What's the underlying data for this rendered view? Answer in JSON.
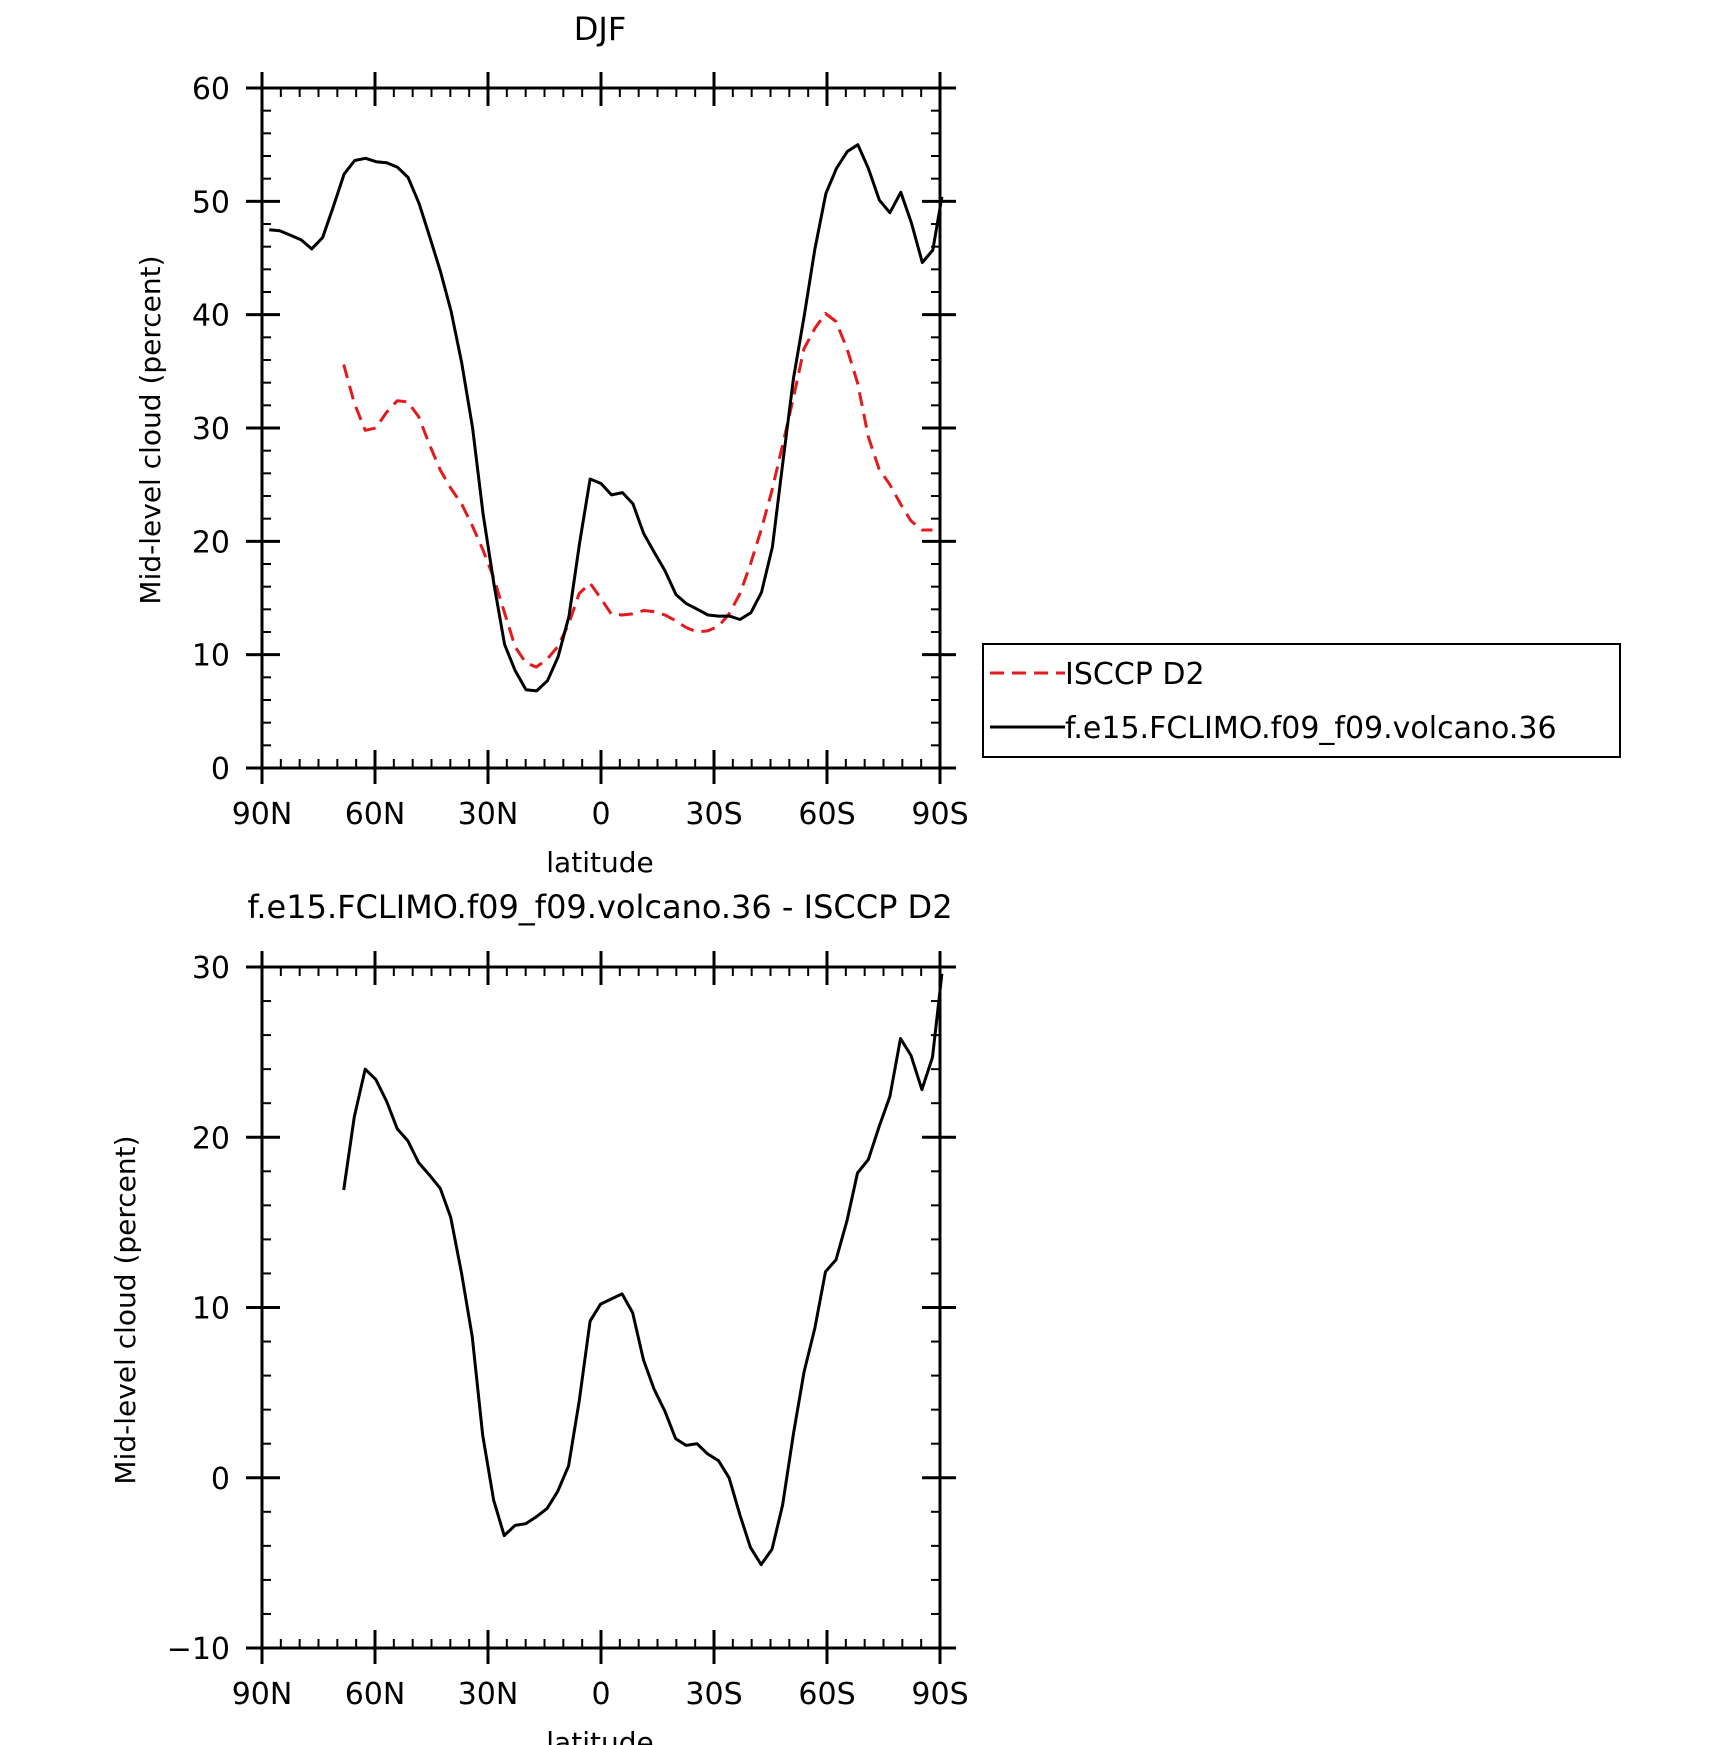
{
  "chart_data": [
    {
      "type": "line",
      "title": "DJF",
      "xlabel": "latitude",
      "ylabel": "Mid-level cloud (percent)",
      "xlim": [
        90,
        -90
      ],
      "ylim": [
        0,
        60
      ],
      "x_ticks": [
        90,
        60,
        30,
        0,
        -30,
        -60,
        -90
      ],
      "x_tick_labels": [
        "90N",
        "60N",
        "30N",
        "0",
        "30S",
        "60S",
        "90S"
      ],
      "y_ticks": [
        0,
        10,
        20,
        30,
        40,
        50,
        60
      ],
      "y_tick_labels": [
        "0",
        "10",
        "20",
        "30",
        "40",
        "50",
        "60"
      ],
      "grid": false,
      "legend_position": "right",
      "series": [
        {
          "name": "ISCCP D2",
          "color": "#e41a1c",
          "dash": true,
          "points": [
            [
              68.3,
              35.6
            ],
            [
              65.5,
              32.2
            ],
            [
              62.6,
              29.8
            ],
            [
              59.8,
              30.0
            ],
            [
              56.9,
              31.4
            ],
            [
              54.1,
              32.4
            ],
            [
              51.3,
              32.3
            ],
            [
              48.4,
              31.0
            ],
            [
              45.6,
              28.6
            ],
            [
              42.7,
              26.3
            ],
            [
              39.9,
              24.7
            ],
            [
              37.0,
              23.3
            ],
            [
              34.2,
              21.4
            ],
            [
              31.4,
              19.3
            ],
            [
              28.5,
              16.8
            ],
            [
              25.7,
              13.8
            ],
            [
              22.8,
              10.7
            ],
            [
              20.0,
              9.3
            ],
            [
              17.2,
              8.9
            ],
            [
              14.3,
              9.6
            ],
            [
              11.5,
              10.7
            ],
            [
              8.6,
              12.7
            ],
            [
              5.8,
              15.4
            ],
            [
              2.9,
              16.3
            ],
            [
              0.1,
              15.0
            ],
            [
              -2.7,
              13.6
            ],
            [
              -5.6,
              13.5
            ],
            [
              -8.4,
              13.6
            ],
            [
              -11.3,
              13.9
            ],
            [
              -14.1,
              13.8
            ],
            [
              -17.0,
              13.5
            ],
            [
              -19.8,
              13.0
            ],
            [
              -22.6,
              12.4
            ],
            [
              -25.5,
              12.0
            ],
            [
              -28.3,
              12.1
            ],
            [
              -31.2,
              12.5
            ],
            [
              -34.0,
              13.6
            ],
            [
              -36.9,
              15.4
            ],
            [
              -39.7,
              18.0
            ],
            [
              -42.5,
              21.0
            ],
            [
              -45.4,
              24.5
            ],
            [
              -48.2,
              28.5
            ],
            [
              -51.1,
              32.7
            ],
            [
              -53.9,
              37.0
            ],
            [
              -56.8,
              38.8
            ],
            [
              -59.6,
              40.1
            ],
            [
              -62.4,
              39.4
            ],
            [
              -65.3,
              37.0
            ],
            [
              -68.1,
              34.0
            ],
            [
              -71.0,
              29.2
            ],
            [
              -73.8,
              26.4
            ],
            [
              -76.7,
              25.0
            ],
            [
              -79.5,
              23.3
            ],
            [
              -82.3,
              21.8
            ],
            [
              -85.2,
              21.0
            ],
            [
              -88.0,
              21.0
            ]
          ]
        },
        {
          "name": "f.e15.FCLIMO.f09_f09.volcano.36",
          "color": "#000000",
          "dash": false,
          "points": [
            [
              88.1,
              47.5
            ],
            [
              85.3,
              47.4
            ],
            [
              82.4,
              47.0
            ],
            [
              79.6,
              46.6
            ],
            [
              76.8,
              45.8
            ],
            [
              73.9,
              46.8
            ],
            [
              71.1,
              49.5
            ],
            [
              68.2,
              52.4
            ],
            [
              65.4,
              53.6
            ],
            [
              62.5,
              53.8
            ],
            [
              59.7,
              53.5
            ],
            [
              56.9,
              53.4
            ],
            [
              54.0,
              53.0
            ],
            [
              51.2,
              52.1
            ],
            [
              48.3,
              49.8
            ],
            [
              45.5,
              46.9
            ],
            [
              42.6,
              43.8
            ],
            [
              39.8,
              40.3
            ],
            [
              37.0,
              35.8
            ],
            [
              34.1,
              30.0
            ],
            [
              31.3,
              22.4
            ],
            [
              28.4,
              16.2
            ],
            [
              25.6,
              10.9
            ],
            [
              22.8,
              8.6
            ],
            [
              19.9,
              6.9
            ],
            [
              17.1,
              6.8
            ],
            [
              14.2,
              7.7
            ],
            [
              11.4,
              9.8
            ],
            [
              8.5,
              13.4
            ],
            [
              5.7,
              19.8
            ],
            [
              2.9,
              25.5
            ],
            [
              0.0,
              25.1
            ],
            [
              -2.8,
              24.1
            ],
            [
              -5.7,
              24.3
            ],
            [
              -8.5,
              23.3
            ],
            [
              -11.3,
              20.7
            ],
            [
              -14.2,
              19.0
            ],
            [
              -17.0,
              17.4
            ],
            [
              -19.9,
              15.3
            ],
            [
              -22.7,
              14.5
            ],
            [
              -25.6,
              14.0
            ],
            [
              -28.4,
              13.5
            ],
            [
              -31.2,
              13.4
            ],
            [
              -34.1,
              13.4
            ],
            [
              -36.9,
              13.1
            ],
            [
              -39.8,
              13.7
            ],
            [
              -42.6,
              15.5
            ],
            [
              -45.5,
              19.5
            ],
            [
              -48.3,
              27.0
            ],
            [
              -51.1,
              34.4
            ],
            [
              -54.0,
              40.0
            ],
            [
              -56.8,
              45.8
            ],
            [
              -59.7,
              50.7
            ],
            [
              -62.5,
              52.9
            ],
            [
              -65.4,
              54.4
            ],
            [
              -68.2,
              55.0
            ],
            [
              -71.0,
              52.9
            ],
            [
              -73.9,
              50.1
            ],
            [
              -76.7,
              49.0
            ],
            [
              -79.6,
              50.8
            ],
            [
              -82.4,
              48.1
            ],
            [
              -85.3,
              44.6
            ],
            [
              -88.1,
              45.7
            ],
            [
              -90.5,
              50.4
            ]
          ]
        }
      ]
    },
    {
      "type": "line",
      "title": "f.e15.FCLIMO.f09_f09.volcano.36 - ISCCP D2",
      "xlabel": "latitude",
      "ylabel": "Mid-level cloud (percent)",
      "xlim": [
        90,
        -90
      ],
      "ylim": [
        -10,
        30
      ],
      "x_ticks": [
        90,
        60,
        30,
        0,
        -30,
        -60,
        -90
      ],
      "x_tick_labels": [
        "90N",
        "60N",
        "30N",
        "0",
        "30S",
        "60S",
        "90S"
      ],
      "y_ticks": [
        -10,
        0,
        10,
        20,
        30
      ],
      "y_tick_labels": [
        "−10",
        "0",
        "10",
        "20",
        "30"
      ],
      "grid": false,
      "series": [
        {
          "color": "#000000",
          "dash": false,
          "points": [
            [
              68.3,
              16.9
            ],
            [
              65.5,
              21.2
            ],
            [
              62.6,
              24.0
            ],
            [
              59.8,
              23.4
            ],
            [
              56.9,
              22.1
            ],
            [
              54.1,
              20.5
            ],
            [
              51.3,
              19.8
            ],
            [
              48.4,
              18.5
            ],
            [
              45.6,
              17.8
            ],
            [
              42.7,
              17.0
            ],
            [
              39.9,
              15.3
            ],
            [
              37.0,
              12.0
            ],
            [
              34.2,
              8.3
            ],
            [
              31.4,
              2.5
            ],
            [
              28.5,
              -1.3
            ],
            [
              25.7,
              -3.4
            ],
            [
              22.8,
              -2.8
            ],
            [
              20.0,
              -2.7
            ],
            [
              17.2,
              -2.3
            ],
            [
              14.3,
              -1.8
            ],
            [
              11.5,
              -0.8
            ],
            [
              8.6,
              0.7
            ],
            [
              5.8,
              4.5
            ],
            [
              2.9,
              9.2
            ],
            [
              0.1,
              10.2
            ],
            [
              -2.7,
              10.5
            ],
            [
              -5.6,
              10.8
            ],
            [
              -8.4,
              9.7
            ],
            [
              -11.3,
              6.9
            ],
            [
              -14.1,
              5.2
            ],
            [
              -17.0,
              3.9
            ],
            [
              -19.8,
              2.3
            ],
            [
              -22.6,
              1.9
            ],
            [
              -25.5,
              2.0
            ],
            [
              -28.3,
              1.4
            ],
            [
              -31.2,
              1.0
            ],
            [
              -34.0,
              0.0
            ],
            [
              -36.9,
              -2.2
            ],
            [
              -39.7,
              -4.1
            ],
            [
              -42.5,
              -5.1
            ],
            [
              -45.4,
              -4.2
            ],
            [
              -48.2,
              -1.6
            ],
            [
              -51.1,
              2.6
            ],
            [
              -53.9,
              6.2
            ],
            [
              -56.8,
              8.8
            ],
            [
              -59.6,
              12.1
            ],
            [
              -62.4,
              12.8
            ],
            [
              -65.3,
              15.1
            ],
            [
              -68.1,
              17.9
            ],
            [
              -71.0,
              18.7
            ],
            [
              -73.8,
              20.6
            ],
            [
              -76.7,
              22.4
            ],
            [
              -79.5,
              25.8
            ],
            [
              -82.3,
              24.8
            ],
            [
              -85.2,
              22.8
            ],
            [
              -88.0,
              24.7
            ],
            [
              -90.5,
              29.6
            ]
          ]
        }
      ]
    }
  ]
}
